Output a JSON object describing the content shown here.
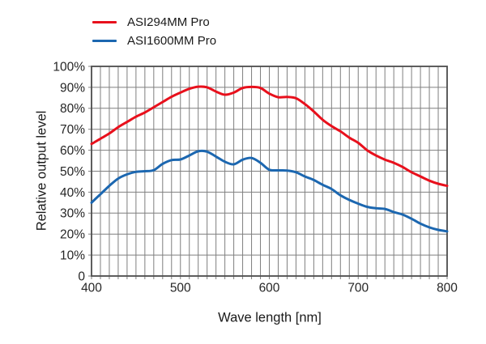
{
  "chart_data": {
    "type": "line",
    "title": "",
    "xlabel": "Wave length [nm]",
    "ylabel": "Relative output level",
    "xlim": [
      400,
      800
    ],
    "ylim": [
      0,
      100
    ],
    "grid": "on",
    "grid_x_step_nm": 10,
    "grid_y_step_pct": 10,
    "legend_position": "top-left",
    "x_tick_values": [
      400,
      500,
      600,
      700,
      800
    ],
    "x_tick_labels": [
      "400",
      "500",
      "600",
      "700",
      "800"
    ],
    "y_tick_values": [
      100,
      90,
      80,
      70,
      60,
      50,
      40,
      30,
      20,
      10,
      0
    ],
    "y_tick_labels": [
      "100%",
      "90%",
      "80%",
      "70%",
      "60%",
      "50%",
      "40%",
      "30%",
      "20%",
      "10%",
      "0"
    ],
    "x": [
      400,
      410,
      420,
      430,
      440,
      450,
      460,
      470,
      480,
      490,
      500,
      510,
      520,
      530,
      540,
      550,
      560,
      570,
      580,
      590,
      600,
      610,
      620,
      630,
      640,
      650,
      660,
      670,
      680,
      690,
      700,
      710,
      720,
      730,
      740,
      750,
      760,
      770,
      780,
      790,
      800
    ],
    "series": [
      {
        "name": "ASI294MM Pro",
        "color": "#e8101c",
        "values": [
          63,
          65.5,
          68,
          71,
          73.5,
          76,
          78,
          80.5,
          83,
          85.5,
          87.5,
          89.3,
          90.3,
          90,
          88,
          86.5,
          87.5,
          89.7,
          90.2,
          89.7,
          87,
          85.3,
          85.4,
          84.8,
          82,
          78.5,
          74.5,
          71.5,
          69,
          66,
          63.5,
          60,
          57.5,
          55.5,
          54,
          52,
          49.5,
          47.5,
          45.5,
          44,
          43
        ]
      },
      {
        "name": "ASI1600MM Pro",
        "color": "#1c67b0",
        "values": [
          35,
          39,
          43,
          46.5,
          48.5,
          49.7,
          50,
          50.5,
          53.5,
          55.3,
          55.6,
          57.5,
          59.5,
          59.3,
          57,
          54.5,
          53.3,
          55.5,
          56.3,
          54,
          50.7,
          50.4,
          50.3,
          49.5,
          47.5,
          45.8,
          43.5,
          41.5,
          38.5,
          36.3,
          34.5,
          33,
          32.3,
          32,
          30.5,
          29.3,
          27.3,
          25,
          23.2,
          22,
          21.3
        ]
      }
    ]
  },
  "colors": {
    "background": "#ffffff",
    "grid": "#7f7f7f",
    "axis_border": "#4d4d4d",
    "text": "#262626"
  }
}
